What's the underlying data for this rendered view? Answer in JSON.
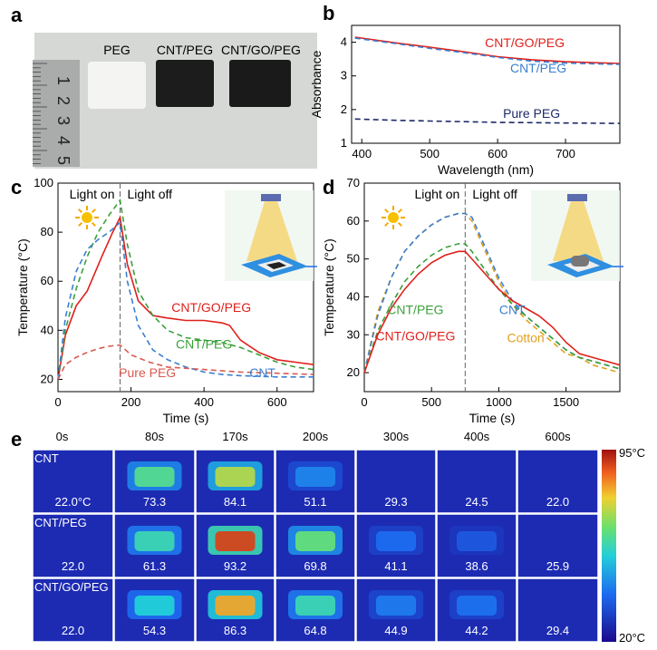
{
  "panels": {
    "a": {
      "letter": "a",
      "labels": [
        "PEG",
        "CNT/PEG",
        "CNT/GO/PEG"
      ],
      "ruler_digits": [
        "1",
        "2",
        "3",
        "4",
        "5"
      ]
    },
    "e": {
      "letter": "e",
      "times": [
        "0s",
        "80s",
        "170s",
        "200s",
        "300s",
        "400s",
        "600s"
      ],
      "rows": [
        {
          "name": "CNT",
          "values": [
            "22.0°C",
            "73.3",
            "84.1",
            "51.1",
            "29.3",
            "24.5",
            "22.0"
          ],
          "intensity": [
            0.05,
            0.55,
            0.68,
            0.3,
            0.1,
            0.04,
            0.02
          ]
        },
        {
          "name": "CNT/PEG",
          "values": [
            "22.0",
            "61.3",
            "93.2",
            "69.8",
            "41.1",
            "38.6",
            "25.9"
          ],
          "intensity": [
            0.05,
            0.5,
            0.92,
            0.58,
            0.25,
            0.2,
            0.07
          ]
        },
        {
          "name": "CNT/GO/PEG",
          "values": [
            "22.0",
            "54.3",
            "86.3",
            "64.8",
            "44.9",
            "44.2",
            "29.4"
          ],
          "intensity": [
            0.05,
            0.45,
            0.8,
            0.5,
            0.28,
            0.26,
            0.1
          ]
        }
      ],
      "colorbar": {
        "max": "95°C",
        "min": "20°C"
      }
    }
  },
  "chart_data": [
    {
      "panel": "b",
      "type": "line",
      "xlabel": "Wavelength (nm)",
      "ylabel": "Absorbance",
      "xlim": [
        385,
        780
      ],
      "ylim": [
        1,
        4.5
      ],
      "xticks": [
        400,
        500,
        600,
        700
      ],
      "yticks": [
        1,
        2,
        3,
        4
      ],
      "series": [
        {
          "name": "CNT/GO/PEG",
          "color": "#e0201b",
          "dash": "",
          "x": [
            390,
            450,
            500,
            550,
            600,
            650,
            700,
            780
          ],
          "y": [
            4.15,
            3.98,
            3.85,
            3.72,
            3.57,
            3.48,
            3.42,
            3.37
          ]
        },
        {
          "name": "CNT/PEG",
          "color": "#3a7fd0",
          "dash": "6,4",
          "x": [
            390,
            450,
            500,
            550,
            600,
            650,
            700,
            780
          ],
          "y": [
            4.12,
            3.96,
            3.82,
            3.69,
            3.55,
            3.44,
            3.38,
            3.34
          ]
        },
        {
          "name": "Pure PEG",
          "color": "#1e2a6a",
          "dash": "6,4",
          "x": [
            390,
            450,
            500,
            550,
            600,
            650,
            700,
            780
          ],
          "y": [
            1.72,
            1.68,
            1.66,
            1.64,
            1.62,
            1.61,
            1.6,
            1.59
          ]
        }
      ],
      "labels": [
        {
          "text": "CNT/GO/PEG",
          "color": "#e0201b",
          "x": 640,
          "y": 3.85
        },
        {
          "text": "CNT/PEG",
          "color": "#3a7fd0",
          "x": 660,
          "y": 3.1
        },
        {
          "text": "Pure PEG",
          "color": "#1e2a6a",
          "x": 650,
          "y": 1.75
        }
      ]
    },
    {
      "panel": "c",
      "type": "line",
      "xlabel": "Time (s)",
      "ylabel": "Temperature (°C)",
      "xlim": [
        0,
        700
      ],
      "ylim": [
        15,
        100
      ],
      "xticks": [
        0,
        200,
        400,
        600
      ],
      "yticks": [
        20,
        40,
        60,
        80,
        100
      ],
      "light_off_x": 170,
      "light_on": "Light on",
      "light_off": "Light off",
      "series": [
        {
          "name": "CNT/GO/PEG",
          "color": "#e0201b",
          "dash": "",
          "x": [
            0,
            20,
            50,
            80,
            120,
            150,
            170,
            190,
            220,
            260,
            300,
            350,
            400,
            450,
            470,
            500,
            550,
            600,
            650,
            700
          ],
          "y": [
            20,
            38,
            50,
            56,
            70,
            80,
            86,
            67,
            52,
            46,
            45,
            44,
            44,
            43,
            42,
            36,
            31,
            28,
            27,
            26
          ]
        },
        {
          "name": "CNT/PEG",
          "color": "#3aa03a",
          "dash": "6,4",
          "x": [
            0,
            20,
            50,
            80,
            110,
            140,
            170,
            190,
            220,
            260,
            300,
            350,
            400,
            450,
            500,
            550,
            600,
            650,
            700
          ],
          "y": [
            20,
            40,
            57,
            70,
            80,
            87,
            93,
            75,
            56,
            46,
            40,
            37,
            36,
            35,
            33,
            30,
            27,
            25,
            24
          ]
        },
        {
          "name": "CNT",
          "color": "#3a7fd0",
          "dash": "6,4",
          "x": [
            0,
            20,
            50,
            80,
            110,
            140,
            170,
            190,
            220,
            260,
            300,
            350,
            400,
            450,
            500,
            600,
            700
          ],
          "y": [
            20,
            45,
            64,
            73,
            77,
            80,
            84,
            60,
            42,
            32,
            28,
            25,
            23,
            22,
            21.5,
            21,
            21
          ]
        },
        {
          "name": "Pure PEG",
          "color": "#d85a50",
          "dash": "6,4",
          "x": [
            0,
            20,
            50,
            80,
            110,
            140,
            170,
            200,
            250,
            300,
            400,
            500,
            600,
            700
          ],
          "y": [
            20,
            26,
            29,
            31,
            32.5,
            33.5,
            34,
            30,
            27,
            25,
            24,
            23,
            22.5,
            22
          ]
        }
      ],
      "labels": [
        {
          "text": "CNT/GO/PEG",
          "color": "#e0201b",
          "x": 420,
          "y": 47.5
        },
        {
          "text": "CNT/PEG",
          "color": "#3aa03a",
          "x": 400,
          "y": 32.5
        },
        {
          "text": "Pure PEG",
          "color": "#d85a50",
          "x": 245,
          "y": 21
        },
        {
          "text": "CNT",
          "color": "#3a7fd0",
          "x": 560,
          "y": 21
        }
      ]
    },
    {
      "panel": "d",
      "type": "line",
      "xlabel": "Time (s)",
      "ylabel": "Temperature (°C)",
      "xlim": [
        0,
        1900
      ],
      "ylim": [
        15,
        70
      ],
      "xticks": [
        0,
        500,
        1000,
        1500
      ],
      "yticks": [
        20,
        30,
        40,
        50,
        60,
        70
      ],
      "light_off_x": 750,
      "light_on": "Light on",
      "light_off": "Light off",
      "series": [
        {
          "name": "Cotton",
          "color": "#e0a020",
          "dash": "6,4",
          "x": [
            0,
            100,
            200,
            300,
            400,
            500,
            600,
            700,
            750,
            800,
            900,
            1000,
            1100,
            1200,
            1300,
            1400,
            1500,
            1600,
            1700,
            1800,
            1900
          ],
          "y": [
            20,
            36,
            45,
            52,
            56,
            59,
            61,
            62,
            62,
            60,
            52,
            44,
            38,
            34,
            31,
            28,
            25,
            24,
            22,
            21,
            20
          ]
        },
        {
          "name": "CNT",
          "color": "#3a7fd0",
          "dash": "6,4",
          "x": [
            0,
            100,
            200,
            300,
            400,
            500,
            600,
            700,
            750,
            800,
            900,
            1000,
            1100,
            1200,
            1300,
            1400,
            1500,
            1600,
            1700,
            1800,
            1900
          ],
          "y": [
            20,
            35,
            45,
            52,
            56,
            59,
            61,
            62,
            62,
            61,
            53,
            45,
            39,
            35,
            32,
            29,
            26,
            24,
            23,
            22,
            21
          ]
        },
        {
          "name": "CNT/PEG",
          "color": "#3aa03a",
          "dash": "6,4",
          "x": [
            0,
            100,
            200,
            300,
            400,
            500,
            600,
            700,
            750,
            800,
            900,
            1000,
            1100,
            1200,
            1300,
            1400,
            1500,
            1600,
            1700,
            1800,
            1900
          ],
          "y": [
            20,
            31,
            38,
            44,
            48,
            51,
            53,
            54,
            54,
            52,
            47,
            42,
            38,
            35,
            32,
            29,
            26,
            24,
            23,
            22,
            21
          ]
        },
        {
          "name": "CNT/GO/PEG",
          "color": "#e0201b",
          "dash": "",
          "x": [
            0,
            100,
            200,
            300,
            400,
            500,
            600,
            700,
            750,
            800,
            900,
            1000,
            1100,
            1200,
            1300,
            1400,
            1500,
            1600,
            1700,
            1800,
            1900
          ],
          "y": [
            20,
            30,
            37,
            42,
            46,
            49,
            51,
            52,
            52,
            50,
            46,
            42,
            39,
            37,
            35,
            32,
            28,
            25,
            24,
            23,
            22
          ]
        }
      ],
      "labels": [
        {
          "text": "CNT/PEG",
          "color": "#3aa03a",
          "x": 380,
          "y": 35.5
        },
        {
          "text": "CNT/GO/PEG",
          "color": "#e0201b",
          "x": 380,
          "y": 28.5
        },
        {
          "text": "CNT",
          "color": "#3a7fd0",
          "x": 1100,
          "y": 35.5
        },
        {
          "text": "Cotton",
          "color": "#e0a020",
          "x": 1200,
          "y": 28
        }
      ]
    }
  ]
}
